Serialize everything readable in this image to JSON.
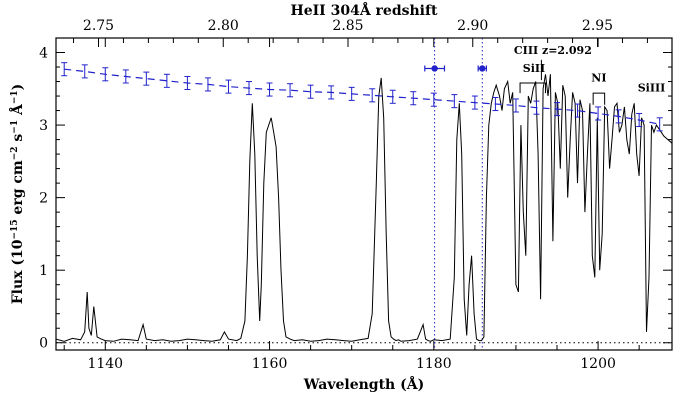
{
  "chart_data": {
    "type": "line",
    "title": "",
    "xlabel": "Wavelength (Å)",
    "ylabel_parts": {
      "pre": "Flux (10",
      "exp1": "−15",
      "mid1": " erg cm",
      "exp2": "−2",
      "mid2": " s",
      "exp3": "−1",
      "mid3": " Å",
      "exp4": "−1",
      "post": ")"
    },
    "top_axis_label": "HeII 304Å redshift",
    "xlim": [
      1134,
      1209
    ],
    "ylim": [
      -0.1,
      4.2
    ],
    "grid": false,
    "x_ticks": [
      1140,
      1160,
      1180,
      1200
    ],
    "x_tick_labels": [
      "1140",
      "1160",
      "1180",
      "1200"
    ],
    "y_ticks": [
      0,
      1,
      2,
      3,
      4
    ],
    "y_tick_labels": [
      "0",
      "1",
      "2",
      "3",
      "4"
    ],
    "top_ticks": [
      2.75,
      2.8,
      2.85,
      2.9,
      2.95
    ],
    "top_tick_labels": [
      "2.75",
      "2.80",
      "2.85",
      "2.90",
      "2.95"
    ],
    "top_axis_rest_wavelength": 303.78,
    "vertical_lines_x": [
      1180.1,
      1185.9
    ],
    "zero_line_y": 0,
    "series": [
      {
        "style": "solid-black",
        "x": [
          1134.0,
          1135,
          1136,
          1137,
          1137.5,
          1137.8,
          1138.0,
          1138.3,
          1138.6,
          1139.0,
          1139.5,
          1140,
          1141,
          1142,
          1143,
          1144,
          1144.6,
          1145,
          1146,
          1147,
          1148,
          1149,
          1150,
          1151,
          1152,
          1153,
          1154,
          1154.5,
          1155,
          1156,
          1156.5,
          1157.0,
          1157.3,
          1157.6,
          1157.9,
          1158.2,
          1158.5,
          1158.8,
          1159.0,
          1159.3,
          1159.6,
          1159.9,
          1160.2,
          1160.5,
          1160.8,
          1161.1,
          1161.4,
          1161.7,
          1162.0,
          1162.5,
          1163,
          1164,
          1165,
          1166,
          1167,
          1168,
          1169,
          1170,
          1171,
          1172,
          1172.5,
          1173.0,
          1173.3,
          1173.6,
          1173.9,
          1174.2,
          1174.5,
          1174.8,
          1175.1,
          1175.4,
          1175.7,
          1176,
          1177,
          1178,
          1178.7,
          1179.0,
          1179.3,
          1179.6,
          1180,
          1181,
          1182,
          1182.5,
          1182.8,
          1183.1,
          1183.4,
          1183.7,
          1184.0,
          1184.3,
          1184.6,
          1184.9,
          1185.2,
          1185.5,
          1185.8,
          1186.1,
          1186.4,
          1186.7,
          1187.0,
          1187.3,
          1187.6,
          1188.0,
          1188.3,
          1188.6,
          1189.0,
          1189.3,
          1189.6,
          1190.0,
          1190.3,
          1190.6,
          1190.9,
          1191.2,
          1191.5,
          1191.8,
          1192.1,
          1192.4,
          1192.7,
          1193.0,
          1193.3,
          1193.6,
          1193.9,
          1194.2,
          1194.5,
          1194.8,
          1195.1,
          1195.4,
          1195.7,
          1196.0,
          1196.3,
          1196.6,
          1196.9,
          1197.2,
          1197.5,
          1197.8,
          1198.1,
          1198.4,
          1198.7,
          1199.0,
          1199.3,
          1199.6,
          1199.9,
          1200.2,
          1200.5,
          1200.8,
          1201.1,
          1201.4,
          1201.7,
          1202.0,
          1202.3,
          1202.6,
          1202.9,
          1203.2,
          1203.5,
          1203.8,
          1204.1,
          1204.4,
          1204.7,
          1205.0,
          1205.3,
          1205.6,
          1205.9,
          1206.2,
          1206.5,
          1206.8,
          1207.1,
          1207.4,
          1207.7,
          1208.0,
          1208.5,
          1209.0
        ],
        "y": [
          0.05,
          0.02,
          0.06,
          0.04,
          0.15,
          0.7,
          0.2,
          0.1,
          0.5,
          0.08,
          0.05,
          0.03,
          0.02,
          0.05,
          0.04,
          0.03,
          0.25,
          0.05,
          0.03,
          0.04,
          0.02,
          0.03,
          0.05,
          0.04,
          0.03,
          0.02,
          0.04,
          0.15,
          0.05,
          0.03,
          0.06,
          0.3,
          1.2,
          2.5,
          3.3,
          2.6,
          1.2,
          0.3,
          0.8,
          2.2,
          2.9,
          3.0,
          3.1,
          2.9,
          2.7,
          2.0,
          1.0,
          0.3,
          0.08,
          0.05,
          0.03,
          0.04,
          0.02,
          0.03,
          0.05,
          0.04,
          0.03,
          0.02,
          0.04,
          0.06,
          0.4,
          2.2,
          3.4,
          3.65,
          3.1,
          1.5,
          0.3,
          0.08,
          0.05,
          0.03,
          0.04,
          0.02,
          0.03,
          0.05,
          0.25,
          0.05,
          0.03,
          0.02,
          0.04,
          0.03,
          0.05,
          0.9,
          2.8,
          3.3,
          2.6,
          0.6,
          0.1,
          0.8,
          1.2,
          0.4,
          0.05,
          0.03,
          0.03,
          0.08,
          2.0,
          3.0,
          3.3,
          3.45,
          3.55,
          3.4,
          3.2,
          3.5,
          3.6,
          3.3,
          3.45,
          0.8,
          0.7,
          3.0,
          1.8,
          1.2,
          3.4,
          3.3,
          3.5,
          3.6,
          2.6,
          0.6,
          3.5,
          3.7,
          3.4,
          3.7,
          1.4,
          3.45,
          3.3,
          2.4,
          3.55,
          3.4,
          2.0,
          2.8,
          3.45,
          3.3,
          2.2,
          3.35,
          3.2,
          1.8,
          2.6,
          3.3,
          1.2,
          0.9,
          3.1,
          1.0,
          1.5,
          3.25,
          3.2,
          2.4,
          2.8,
          3.25,
          3.3,
          2.9,
          3.0,
          3.25,
          2.8,
          2.6,
          3.15,
          3.3,
          2.6,
          2.3,
          3.1,
          3.0,
          0.15,
          0.9,
          3.0,
          2.9,
          3.0,
          2.95,
          2.9,
          2.85,
          2.8,
          2.75
        ]
      },
      {
        "style": "dashed-blue-with-errorbars",
        "x": [
          1135.0,
          1137.5,
          1140.0,
          1142.5,
          1145.0,
          1147.5,
          1150.0,
          1152.5,
          1155.0,
          1157.5,
          1160.0,
          1162.5,
          1165.0,
          1167.5,
          1170.0,
          1172.5,
          1175.0,
          1177.5,
          1180.0,
          1182.5,
          1185.0,
          1187.5,
          1190.0,
          1192.5,
          1195.0,
          1197.5,
          1200.0,
          1202.5,
          1205.0,
          1207.5
        ],
        "y": [
          3.77,
          3.74,
          3.7,
          3.67,
          3.64,
          3.61,
          3.58,
          3.56,
          3.53,
          3.51,
          3.49,
          3.48,
          3.46,
          3.45,
          3.43,
          3.41,
          3.39,
          3.37,
          3.35,
          3.33,
          3.31,
          3.29,
          3.27,
          3.24,
          3.22,
          3.2,
          3.16,
          3.12,
          3.07,
          3.01
        ],
        "yerr": 0.09
      },
      {
        "style": "blue-points-xerr",
        "x": [
          1180.1,
          1185.9
        ],
        "y": [
          3.78,
          3.78
        ],
        "xerr": [
          1.2,
          0.5
        ]
      }
    ],
    "annotations": [
      {
        "text": "CIII  z=2.092",
        "x": 1194.5,
        "y": 3.98,
        "kind": "label"
      },
      {
        "text": "SiII",
        "x": 1192.2,
        "y": 3.73,
        "kind": "label"
      },
      {
        "text": "NI",
        "x": 1200.1,
        "y": 3.6,
        "kind": "label"
      },
      {
        "text": "SiIII",
        "x": 1206.5,
        "y": 3.46,
        "kind": "label"
      }
    ],
    "markers": [
      {
        "kind": "tick",
        "x": 1193.1,
        "y_top": 3.9,
        "y_bottom": 3.62
      },
      {
        "kind": "bracket",
        "x1": 1190.5,
        "x2": 1193.6,
        "y_top": 3.58,
        "y_bottom": 3.44
      },
      {
        "kind": "bracket",
        "x1": 1199.4,
        "x2": 1200.8,
        "y_top": 3.44,
        "y_bottom": 3.28
      }
    ]
  }
}
